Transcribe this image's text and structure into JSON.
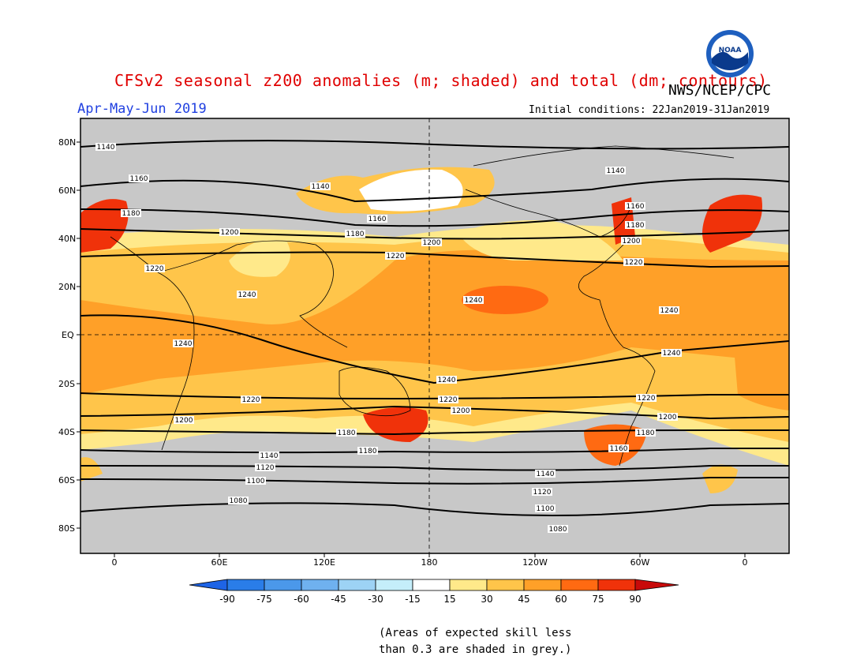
{
  "header": {
    "title": "CFSv2 seasonal z200 anomalies (m; shaded) and total (dm; contours)",
    "agency": "NWS/NCEP/CPC",
    "season": "Apr-May-Jun 2019",
    "initial_conditions": "Initial conditions: 22Jan2019-31Jan2019"
  },
  "logo": {
    "text": "NOAA",
    "colors": {
      "ring": "#1e5fbf",
      "center": "#ffffff",
      "wave": "#0a3a8c"
    }
  },
  "map": {
    "lat_labels": [
      "80N",
      "60N",
      "40N",
      "20N",
      "EQ",
      "20S",
      "40S",
      "60S",
      "80S"
    ],
    "lon_labels": [
      "0",
      "60E",
      "120E",
      "180",
      "120W",
      "60W",
      "0"
    ],
    "contour_labels": [
      "1140",
      "1160",
      "1180",
      "1200",
      "1220",
      "1240",
      "1080",
      "1100",
      "1120"
    ],
    "colors": {
      "no_skill": "#c8c8c8",
      "ocean_bg": "#c8c8c8",
      "coast": "#000000"
    }
  },
  "colorbar": {
    "labels": [
      "-90",
      "-75",
      "-60",
      "-45",
      "-30",
      "-15",
      "15",
      "30",
      "45",
      "60",
      "75",
      "90"
    ],
    "colors": [
      "#1e64e6",
      "#2a7de8",
      "#4b98ea",
      "#6fb1ef",
      "#9dd3f5",
      "#c5eefa",
      "#ffffff",
      "#ffe98a",
      "#ffc54a",
      "#ffa028",
      "#ff6a12",
      "#f0320a",
      "#c80a0a"
    ]
  },
  "note": {
    "line1": "(Areas of expected skill less",
    "line2": "than 0.3 are shaded in grey.)"
  }
}
